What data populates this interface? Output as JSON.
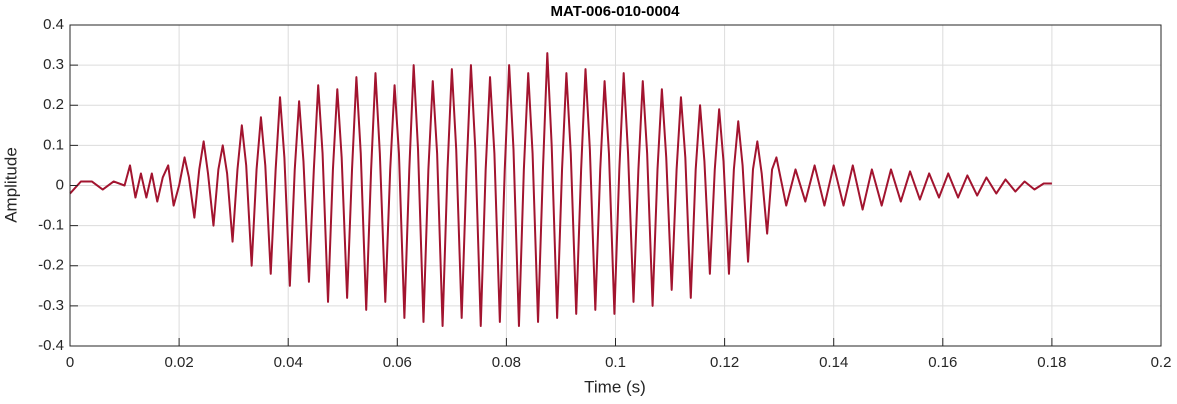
{
  "chart_data": {
    "type": "line",
    "title": "MAT-006-010-0004",
    "xlabel": "Time (s)",
    "ylabel": "Amplitude",
    "grid": true,
    "xlim": [
      0,
      0.2
    ],
    "xticks": [
      0,
      0.02,
      0.04,
      0.06,
      0.08,
      0.1,
      0.12,
      0.14,
      0.16,
      0.18,
      0.2
    ],
    "ylim": [
      -0.4,
      0.4
    ],
    "yticks": [
      -0.4,
      -0.3,
      -0.2,
      -0.1,
      0,
      0.1,
      0.2,
      0.3,
      0.4
    ],
    "series": [
      {
        "color": "#a2142f",
        "x": [
          0,
          0.002,
          0.004,
          0.006,
          0.008,
          0.01,
          0.011,
          0.012,
          0.013,
          0.014,
          0.015,
          0.016,
          0.017,
          0.018,
          0.019,
          0.02,
          0.021,
          0.0218,
          0.0228,
          0.0237,
          0.0245,
          0.0253,
          0.0263,
          0.0272,
          0.028,
          0.0288,
          0.0298,
          0.0307,
          0.0315,
          0.0323,
          0.0333,
          0.0342,
          0.035,
          0.0358,
          0.0368,
          0.0377,
          0.0385,
          0.0393,
          0.0403,
          0.0412,
          0.042,
          0.0428,
          0.0438,
          0.0447,
          0.0455,
          0.0463,
          0.0473,
          0.0482,
          0.049,
          0.0498,
          0.0508,
          0.0517,
          0.0525,
          0.0533,
          0.0543,
          0.0552,
          0.056,
          0.0568,
          0.0578,
          0.0587,
          0.0595,
          0.0603,
          0.0613,
          0.0622,
          0.063,
          0.0638,
          0.0648,
          0.0657,
          0.0665,
          0.0673,
          0.0683,
          0.0692,
          0.07,
          0.0708,
          0.0718,
          0.0727,
          0.0735,
          0.0743,
          0.0753,
          0.0762,
          0.077,
          0.0778,
          0.0788,
          0.0797,
          0.0805,
          0.0813,
          0.0823,
          0.0832,
          0.084,
          0.0848,
          0.0858,
          0.0867,
          0.0875,
          0.0883,
          0.0893,
          0.0902,
          0.091,
          0.0918,
          0.0928,
          0.0937,
          0.0945,
          0.0953,
          0.0963,
          0.0972,
          0.098,
          0.0988,
          0.0998,
          0.1007,
          0.1015,
          0.1023,
          0.1033,
          0.1042,
          0.105,
          0.1058,
          0.1068,
          0.1077,
          0.1085,
          0.1093,
          0.1103,
          0.1112,
          0.112,
          0.1128,
          0.1138,
          0.1147,
          0.1155,
          0.1163,
          0.1173,
          0.1182,
          0.119,
          0.1198,
          0.1208,
          0.1217,
          0.1225,
          0.1233,
          0.1243,
          0.1252,
          0.126,
          0.1268,
          0.1278,
          0.1287,
          0.1295,
          0.1313,
          0.133,
          0.1348,
          0.1365,
          0.1383,
          0.14,
          0.1418,
          0.1435,
          0.1453,
          0.147,
          0.1488,
          0.1505,
          0.1523,
          0.154,
          0.1558,
          0.1575,
          0.1593,
          0.161,
          0.1628,
          0.1645,
          0.1663,
          0.168,
          0.1698,
          0.1715,
          0.1733,
          0.175,
          0.1768,
          0.1785,
          0.18
        ],
        "values": [
          -0.02,
          0.01,
          0.01,
          -0.01,
          0.01,
          0,
          0.05,
          -0.03,
          0.03,
          -0.03,
          0.03,
          -0.04,
          0.02,
          0.05,
          -0.05,
          0,
          0.07,
          0.02,
          -0.08,
          0.04,
          0.11,
          0.03,
          -0.1,
          0.04,
          0.1,
          0.03,
          -0.14,
          0.04,
          0.15,
          0.05,
          -0.2,
          0.04,
          0.17,
          0.05,
          -0.22,
          0.04,
          0.22,
          0.07,
          -0.25,
          0.04,
          0.21,
          0.06,
          -0.24,
          0.04,
          0.25,
          0.08,
          -0.29,
          0.04,
          0.24,
          0.07,
          -0.28,
          0.04,
          0.27,
          0.08,
          -0.31,
          0.04,
          0.28,
          0.08,
          -0.29,
          0.04,
          0.25,
          0.08,
          -0.33,
          0.04,
          0.3,
          0.09,
          -0.34,
          0.04,
          0.26,
          0.08,
          -0.35,
          0.04,
          0.29,
          0.09,
          -0.33,
          0.04,
          0.3,
          0.09,
          -0.35,
          0.04,
          0.27,
          0.08,
          -0.34,
          0.04,
          0.3,
          0.09,
          -0.35,
          0.04,
          0.28,
          0.08,
          -0.34,
          0.04,
          0.33,
          0.1,
          -0.33,
          0.04,
          0.28,
          0.08,
          -0.32,
          0.04,
          0.29,
          0.09,
          -0.31,
          0.04,
          0.26,
          0.08,
          -0.32,
          0.04,
          0.28,
          0.08,
          -0.29,
          0.04,
          0.26,
          0.08,
          -0.3,
          0.04,
          0.24,
          0.07,
          -0.26,
          0.04,
          0.22,
          0.07,
          -0.28,
          0.04,
          0.2,
          0.06,
          -0.22,
          0.04,
          0.19,
          0.06,
          -0.22,
          0.04,
          0.16,
          0.05,
          -0.19,
          0.04,
          0.11,
          0.03,
          -0.12,
          0.04,
          0.07,
          -0.05,
          0.04,
          -0.04,
          0.05,
          -0.05,
          0.05,
          -0.05,
          0.05,
          -0.06,
          0.04,
          -0.05,
          0.04,
          -0.04,
          0.035,
          -0.035,
          0.03,
          -0.03,
          0.03,
          -0.03,
          0.025,
          -0.025,
          0.02,
          -0.02,
          0.015,
          -0.015,
          0.01,
          -0.01,
          0.005,
          0.005
        ]
      }
    ]
  }
}
